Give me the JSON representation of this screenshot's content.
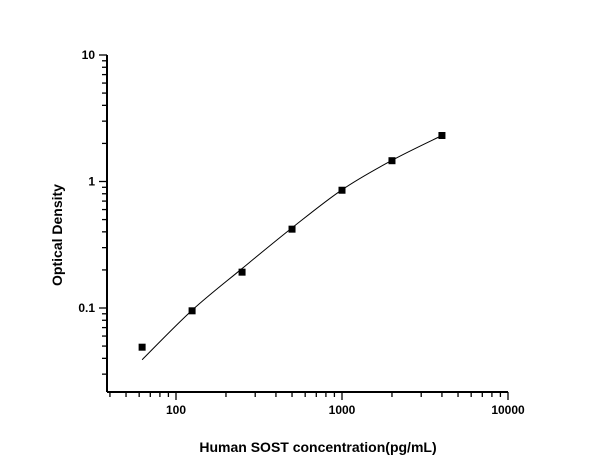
{
  "chart_data": {
    "type": "scatter",
    "title": "",
    "xlabel": "Human SOST concentration(pg/mL)",
    "ylabel": "Optical Density",
    "x_scale": "log",
    "y_scale": "log",
    "xlim": [
      38,
      10000
    ],
    "ylim": [
      0.022,
      10
    ],
    "x_ticks": [
      100,
      1000,
      10000
    ],
    "x_tick_labels": [
      "100",
      "1000",
      "10000"
    ],
    "y_ticks": [
      0.1,
      1,
      10
    ],
    "y_tick_labels": [
      "0.1",
      "1",
      "10"
    ],
    "grid": false,
    "legend": "none",
    "series": [
      {
        "marker": "square",
        "color": "#000000",
        "x": [
          62.5,
          125,
          250,
          500,
          1000,
          2000,
          4000
        ],
        "y": [
          0.049,
          0.095,
          0.192,
          0.42,
          0.853,
          1.46,
          2.31
        ]
      }
    ],
    "fit_curve": {
      "color": "#000000",
      "x": [
        62.5,
        125,
        250,
        500,
        1000,
        2000,
        4000
      ],
      "y": [
        0.039,
        0.096,
        0.205,
        0.43,
        0.86,
        1.47,
        2.31
      ]
    }
  }
}
